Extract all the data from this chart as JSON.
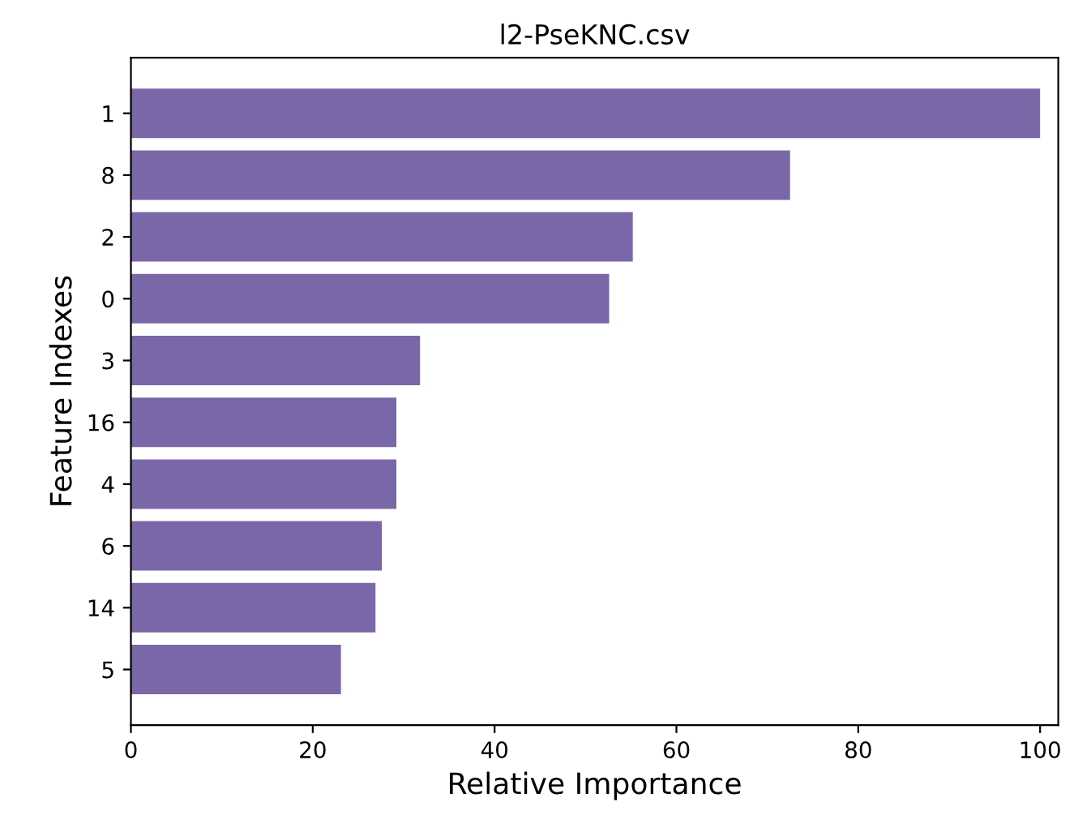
{
  "chart_data": {
    "type": "bar",
    "orientation": "horizontal",
    "title": "l2-PseKNC.csv",
    "xlabel": "Relative Importance",
    "ylabel": "Feature Indexes",
    "categories": [
      "1",
      "8",
      "2",
      "0",
      "3",
      "16",
      "4",
      "6",
      "14",
      "5"
    ],
    "values": [
      100,
      72.5,
      55.2,
      52.6,
      31.8,
      29.2,
      29.2,
      27.6,
      26.9,
      23.1
    ],
    "color": "#7a67a7",
    "xlim": [
      0,
      102
    ],
    "xticks": [
      0,
      20,
      40,
      60,
      80,
      100
    ],
    "grid": false,
    "legend": false
  }
}
